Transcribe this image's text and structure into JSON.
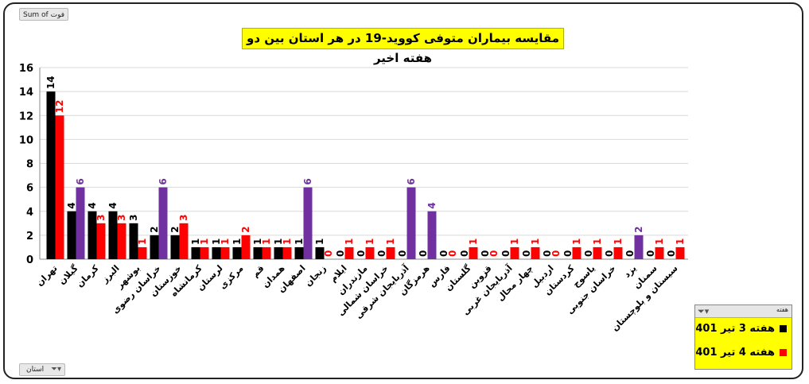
{
  "field_button_top": "Sum of فوت",
  "field_button_bottom": {
    "label": "استان",
    "icon": "filter-dropdown-icon"
  },
  "legend": {
    "header": "هفته",
    "icon": "filter-dropdown-icon",
    "items": [
      {
        "label": "هفته 3 تیر 401",
        "color": "#000000"
      },
      {
        "label": "هفته 4 تیر 401",
        "color": "#ff0000"
      }
    ]
  },
  "colors": {
    "week3": "#000000",
    "week4": "#ff0000",
    "purple": "#7030a0",
    "title_bg": "#ffff00"
  },
  "chart_data": {
    "type": "bar",
    "title": "مقایسه بیماران متوفی کووید-19 در هر استان بین دو هفته اخیر",
    "ylim": [
      0,
      16
    ],
    "yticks": [
      0,
      2,
      4,
      6,
      8,
      10,
      12,
      14,
      16
    ],
    "grid": true,
    "legend_position": "bottom-right",
    "note": "",
    "categories": [
      "تهران",
      "گیلان",
      "کرمان",
      "البرز",
      "بوشهر",
      "خراسان رضوی",
      "خوزستان",
      "کرمانشاه",
      "لرستان",
      "مرکزی",
      "قم",
      "همدان",
      "اصفهان",
      "زنجان",
      "ایلام",
      "مازندران",
      "خراسان شمالی",
      "آذربایجان شرقی",
      "هرمزگان",
      "فارس",
      "گلستان",
      "قزوین",
      "آذربایجان غربی",
      "چهار محال",
      "اردبیل",
      "کردستان",
      "یاسوج",
      "خراسان جنوبی",
      "یزد",
      "سمنان",
      "سیستان و بلوچستان"
    ],
    "series": [
      {
        "name": "هفته 3 تیر 401",
        "values": [
          14,
          4,
          4,
          4,
          3,
          2,
          2,
          1,
          1,
          1,
          1,
          1,
          1,
          1,
          0,
          0,
          0,
          0,
          0,
          0,
          0,
          0,
          0,
          0,
          0,
          0,
          0,
          0,
          0,
          0,
          0
        ]
      },
      {
        "name": "هفته 4 تیر 401",
        "values": [
          12,
          6,
          3,
          3,
          1,
          6,
          3,
          1,
          1,
          2,
          1,
          1,
          6,
          0,
          1,
          1,
          1,
          6,
          4,
          0,
          1,
          0,
          1,
          1,
          0,
          1,
          1,
          1,
          2,
          1,
          1
        ]
      }
    ],
    "purple_bar_indices": [
      1,
      5,
      12,
      17,
      18,
      28
    ]
  }
}
